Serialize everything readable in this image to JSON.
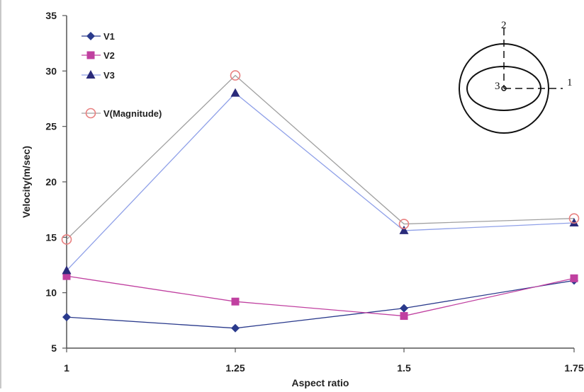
{
  "chart_data": {
    "type": "line",
    "title": "",
    "xlabel": "Aspect ratio",
    "ylabel": "Velocity(m/sec)",
    "categories": [
      "1",
      "1.25",
      "1.5",
      "1.75"
    ],
    "ylim": [
      5,
      35
    ],
    "yticks": [
      "5",
      "10",
      "15",
      "20",
      "25",
      "30",
      "35"
    ],
    "grid": false,
    "legend_position": "top-left",
    "series": [
      {
        "name": "V1",
        "values": [
          7.8,
          6.8,
          8.6,
          11.1
        ],
        "color": "#2a3a8c",
        "marker": "diamond"
      },
      {
        "name": "V2",
        "values": [
          11.5,
          9.2,
          7.9,
          11.3
        ],
        "color": "#c040a0",
        "marker": "square"
      },
      {
        "name": "V3",
        "values": [
          12.0,
          28.0,
          15.6,
          16.3
        ],
        "color": "#2a2a7a",
        "line_color": "#8fa0e8",
        "marker": "triangle"
      },
      {
        "name": "V(Magnitude)",
        "values": [
          14.8,
          29.6,
          16.2,
          16.7
        ],
        "color": "#e88080",
        "line_color": "#a0a0a0",
        "marker": "circle-open"
      }
    ],
    "inset": {
      "description_labels": [
        "1",
        "2",
        "3"
      ],
      "shape": "ellipse inside circle with axes"
    }
  }
}
